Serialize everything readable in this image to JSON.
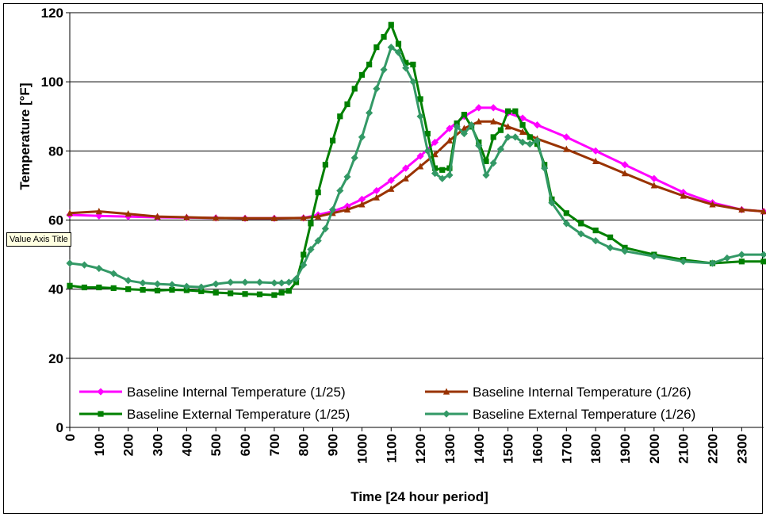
{
  "chart_data": {
    "type": "line",
    "xlabel": "Time [24 hour period]",
    "ylabel": "Temperature [°F]",
    "ylim": [
      0,
      120
    ],
    "yticks": [
      0,
      20,
      40,
      60,
      80,
      100,
      120
    ],
    "xlim": [
      0,
      2375
    ],
    "xticks": [
      0,
      100,
      200,
      300,
      400,
      500,
      600,
      700,
      800,
      900,
      1000,
      1100,
      1200,
      1300,
      1400,
      1500,
      1600,
      1700,
      1800,
      1900,
      2000,
      2100,
      2200,
      2300
    ],
    "grid": "horizontal",
    "legend_position": "bottom",
    "series": [
      {
        "name": "Baseline Internal Temperature (1/25)",
        "color": "#ff00ff",
        "marker": "diamond",
        "x": [
          0,
          100,
          200,
          300,
          400,
          500,
          600,
          700,
          800,
          850,
          900,
          950,
          1000,
          1050,
          1100,
          1150,
          1200,
          1250,
          1300,
          1350,
          1400,
          1450,
          1500,
          1550,
          1600,
          1700,
          1800,
          1900,
          2000,
          2100,
          2200,
          2300,
          2375
        ],
        "y": [
          61.5,
          61.2,
          61,
          60.8,
          60.7,
          60.6,
          60.5,
          60.5,
          60.6,
          61.5,
          62.5,
          64,
          66,
          68.5,
          71.5,
          75,
          78.5,
          82.5,
          86.5,
          90,
          92.5,
          92.5,
          91,
          89.5,
          87.5,
          84,
          80,
          76,
          72,
          68,
          65,
          63,
          62.5
        ]
      },
      {
        "name": "Baseline Internal Temperature (1/26)",
        "color": "#993300",
        "marker": "triangle",
        "x": [
          0,
          100,
          200,
          300,
          400,
          500,
          600,
          700,
          800,
          850,
          900,
          950,
          1000,
          1050,
          1100,
          1150,
          1200,
          1250,
          1300,
          1350,
          1400,
          1450,
          1500,
          1550,
          1600,
          1700,
          1800,
          1900,
          2000,
          2100,
          2200,
          2300,
          2375
        ],
        "y": [
          62,
          62.5,
          61.8,
          61,
          60.8,
          60.6,
          60.5,
          60.5,
          60.6,
          61,
          62,
          63,
          64.5,
          66.5,
          69,
          72,
          75.5,
          79,
          83,
          86.5,
          88.5,
          88.5,
          87,
          85.5,
          83.5,
          80.5,
          77,
          73.5,
          70,
          67,
          64.5,
          63,
          62.5
        ]
      },
      {
        "name": "Baseline External Temperature (1/25)",
        "color": "#008000",
        "marker": "square",
        "x": [
          0,
          50,
          100,
          150,
          200,
          250,
          300,
          350,
          400,
          450,
          500,
          550,
          600,
          650,
          700,
          725,
          750,
          775,
          800,
          825,
          850,
          875,
          900,
          925,
          950,
          975,
          1000,
          1025,
          1050,
          1075,
          1100,
          1125,
          1150,
          1175,
          1200,
          1225,
          1250,
          1275,
          1300,
          1325,
          1350,
          1375,
          1400,
          1425,
          1450,
          1475,
          1500,
          1525,
          1550,
          1575,
          1600,
          1625,
          1650,
          1700,
          1750,
          1800,
          1850,
          1900,
          2000,
          2100,
          2200,
          2300,
          2375
        ],
        "y": [
          41,
          40.5,
          40.5,
          40.3,
          40,
          39.8,
          39.6,
          39.8,
          39.7,
          39.4,
          39,
          38.8,
          38.6,
          38.5,
          38.3,
          39,
          39.5,
          42,
          50,
          59,
          68,
          76,
          83,
          90,
          93.5,
          98,
          102,
          105,
          110,
          113,
          116.5,
          111,
          105.5,
          105,
          95,
          85,
          75,
          74.5,
          75,
          88,
          90.5,
          87,
          82.5,
          77,
          84,
          86,
          91.5,
          91.5,
          87.5,
          84,
          82,
          76,
          66,
          62,
          59,
          57,
          55,
          52,
          50,
          48.5,
          47.5,
          48,
          48
        ]
      },
      {
        "name": "Baseline External Temperature (1/26)",
        "color": "#339966",
        "marker": "diamond",
        "x": [
          0,
          50,
          100,
          150,
          200,
          250,
          300,
          350,
          400,
          450,
          500,
          550,
          600,
          650,
          700,
          725,
          750,
          775,
          800,
          825,
          850,
          875,
          900,
          925,
          950,
          975,
          1000,
          1025,
          1050,
          1075,
          1100,
          1125,
          1150,
          1175,
          1200,
          1225,
          1250,
          1275,
          1300,
          1325,
          1350,
          1375,
          1400,
          1425,
          1450,
          1475,
          1500,
          1525,
          1550,
          1575,
          1600,
          1625,
          1650,
          1700,
          1750,
          1800,
          1850,
          1900,
          2000,
          2100,
          2200,
          2250,
          2300,
          2375
        ],
        "y": [
          47.5,
          47,
          46,
          44.5,
          42.5,
          41.8,
          41.5,
          41.3,
          40.8,
          40.6,
          41.5,
          42,
          42,
          42,
          41.8,
          41.8,
          42,
          43,
          47,
          51.5,
          54,
          57.5,
          63,
          68.5,
          72.5,
          78,
          84,
          91,
          98,
          103.5,
          110,
          108.5,
          104,
          100,
          90,
          80,
          73.5,
          72,
          73,
          87,
          85,
          87.5,
          81.5,
          73,
          76.5,
          80.5,
          84,
          84,
          82.5,
          82,
          83,
          75,
          65,
          59,
          56,
          54,
          52,
          51,
          49.5,
          48,
          47.5,
          49,
          50,
          50
        ]
      }
    ]
  },
  "tooltip_text": "Value Axis Title"
}
